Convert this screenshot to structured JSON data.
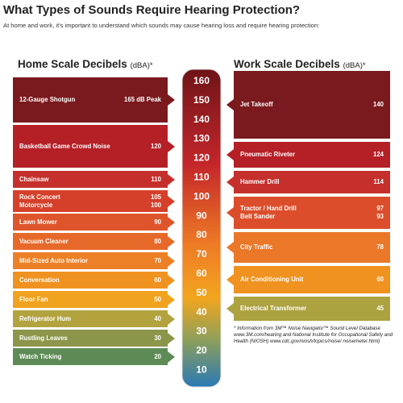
{
  "title": "What Types of Sounds Require Hearing Protection?",
  "subtitle": "At home and work, it's important to understand which sounds may cause hearing loss and require hearing protection:",
  "home": {
    "heading": "Home Scale Decibels",
    "unit": "(dBA)*",
    "rows": [
      {
        "items": [
          {
            "label": "12-Gauge Shotgun",
            "value": "165 dB Peak"
          }
        ]
      },
      {
        "items": [
          {
            "label": "Basketball Game Crowd Noise",
            "value": 120
          }
        ]
      },
      {
        "items": [
          {
            "label": "Chainsaw",
            "value": 110
          }
        ]
      },
      {
        "items": [
          {
            "label": "Rock Concert",
            "value": 105
          },
          {
            "label": "Motorcycle",
            "value": 100
          }
        ]
      },
      {
        "items": [
          {
            "label": "Lawn Mower",
            "value": 90
          }
        ]
      },
      {
        "items": [
          {
            "label": "Vacuum Cleaner",
            "value": 80
          }
        ]
      },
      {
        "items": [
          {
            "label": "Mid-Sized Auto Interior",
            "value": 70
          }
        ]
      },
      {
        "items": [
          {
            "label": "Conversation",
            "value": 60
          }
        ]
      },
      {
        "items": [
          {
            "label": "Floor Fan",
            "value": 50
          }
        ]
      },
      {
        "items": [
          {
            "label": "Refrigerator Hum",
            "value": 40
          }
        ]
      },
      {
        "items": [
          {
            "label": "Rustling Leaves",
            "value": 30
          }
        ]
      },
      {
        "items": [
          {
            "label": "Watch Ticking",
            "value": 20
          }
        ]
      }
    ]
  },
  "work": {
    "heading": "Work Scale Decibels",
    "unit": "(dBA)*",
    "rows": [
      {
        "items": [
          {
            "label": "Jet Takeoff",
            "value": 140
          }
        ]
      },
      {
        "items": [
          {
            "label": "Pneumatic Riveter",
            "value": 124
          }
        ]
      },
      {
        "items": [
          {
            "label": "Hammer Drill",
            "value": 114
          }
        ]
      },
      {
        "items": [
          {
            "label": "Tractor / Hand Drill",
            "value": 97
          },
          {
            "label": "Belt Sander",
            "value": 93
          }
        ]
      },
      {
        "items": [
          {
            "label": "City Traffic",
            "value": 78
          }
        ]
      },
      {
        "items": [
          {
            "label": "Air Conditioning Unit",
            "value": 60
          }
        ]
      },
      {
        "items": [
          {
            "label": "Electrical Transformer",
            "value": 45
          }
        ]
      }
    ]
  },
  "scale": [
    160,
    150,
    140,
    130,
    120,
    110,
    100,
    90,
    80,
    70,
    60,
    50,
    40,
    30,
    20,
    10
  ],
  "footnote": "* Information from 3M™ Noise Navigator™ Sound Level Database www.3M.com/hearing and National Institute for Occupational Safety and Health (NIOSH) www.cdc.gov/niosh/topics/noise/ noisemeter.html)"
}
